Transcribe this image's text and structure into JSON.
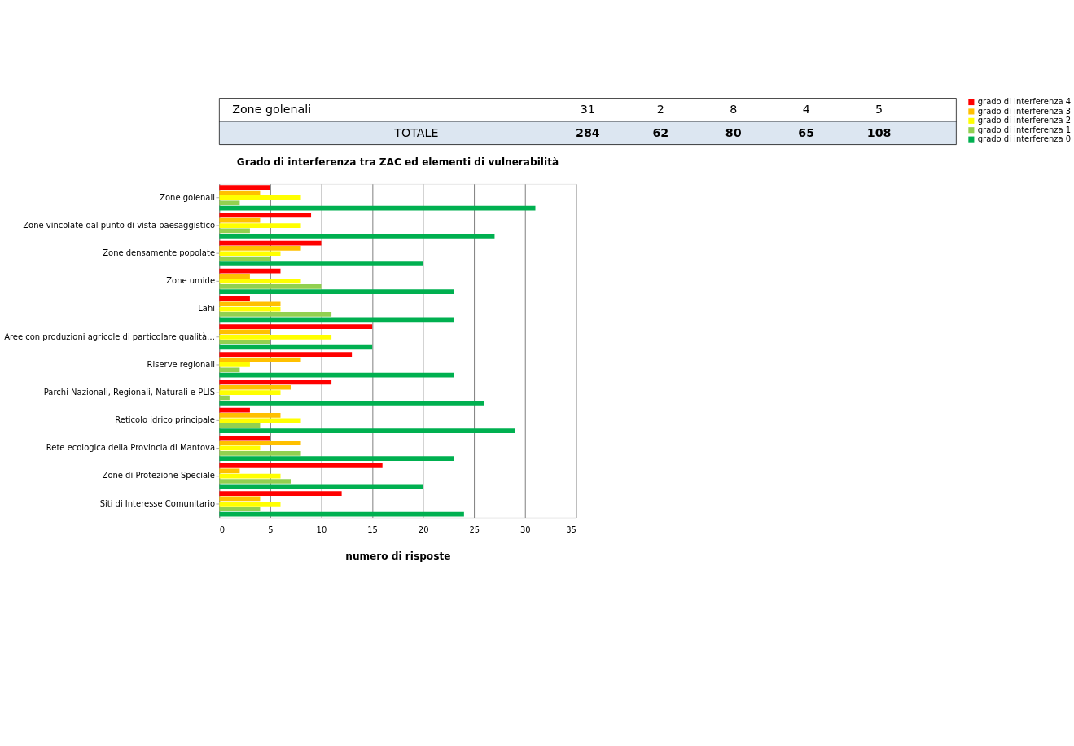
{
  "chart_data": {
    "type": "bar",
    "orientation": "horizontal",
    "title": "Grado di interferenza tra ZAC ed elementi di vulnerabilità",
    "xlabel": "numero di risposte",
    "categories": [
      "Zone golenali",
      "Zone vincolate dal punto di vista paesaggistico",
      "Zone densamente popolate",
      "Zone umide",
      "Lahi",
      "Aree con produzioni agricole di particolare qualità…",
      "Riserve regionali",
      "Parchi Nazionali, Regionali, Naturali e PLIS",
      "Reticolo idrico principale",
      "Rete ecologica della Provincia di Mantova",
      "Zone di Protezione Speciale",
      "Siti di Interesse Comunitario"
    ],
    "series": [
      {
        "name": "grado di interferenza 4",
        "color": "#ff0000",
        "values": [
          5,
          9,
          10,
          6,
          3,
          15,
          13,
          11,
          3,
          5,
          16,
          12
        ]
      },
      {
        "name": "grado di interferenza 3",
        "color": "#ffc000",
        "values": [
          4,
          4,
          8,
          3,
          6,
          5,
          8,
          7,
          6,
          8,
          2,
          4
        ]
      },
      {
        "name": "grado di interferenza 2",
        "color": "#ffff00",
        "values": [
          8,
          8,
          6,
          8,
          6,
          11,
          3,
          6,
          8,
          4,
          6,
          6
        ]
      },
      {
        "name": "grado di interferenza 1",
        "color": "#92d050",
        "values": [
          2,
          3,
          5,
          10,
          11,
          5,
          2,
          1,
          4,
          8,
          7,
          4
        ]
      },
      {
        "name": "grado di interferenza 0",
        "color": "#00b050",
        "values": [
          31,
          27,
          20,
          23,
          23,
          15,
          23,
          26,
          29,
          23,
          20,
          24
        ]
      }
    ],
    "xlim": [
      0,
      35
    ],
    "xticks": [
      0,
      5,
      10,
      15,
      20,
      25,
      30,
      35
    ],
    "grid": "x",
    "legend": "right",
    "annotations": [
      "Zone golenali",
      "31",
      "2",
      "8",
      "4",
      "5",
      "TOTALE",
      "284",
      "62",
      "80",
      "65",
      "108"
    ]
  }
}
